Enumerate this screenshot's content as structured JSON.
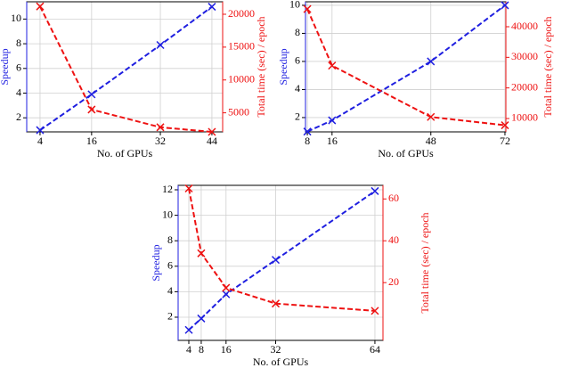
{
  "chart_data": [
    {
      "type": "line",
      "x": [
        4,
        16,
        32,
        44
      ],
      "xlabel": "No. of GPUs",
      "ylabel": "Speedup",
      "y2label": "Total time (sec) / epoch",
      "xlim": [
        0.9,
        46.5
      ],
      "xticks": [
        4,
        16,
        32,
        44
      ],
      "ylim": [
        0.86,
        11.4
      ],
      "yticks": [
        2,
        4,
        6,
        8,
        10
      ],
      "y2lim": [
        2100,
        21900
      ],
      "y2ticks": [
        5000,
        10000,
        15000,
        20000
      ],
      "grid": true,
      "series": [
        {
          "name": "Speedup",
          "color": "#1f1fe0",
          "values": [
            1,
            3.9,
            7.9,
            11
          ]
        },
        {
          "name": "Total time (sec) / epoch",
          "color": "#ee1111",
          "axis": "y2",
          "values": [
            21200,
            5500,
            2800,
            2100
          ]
        }
      ]
    },
    {
      "type": "line",
      "x": [
        8,
        16,
        48,
        72
      ],
      "xlabel": "No. of GPUs",
      "ylabel": "Speedup",
      "y2label": "Total time (sec) / epoch",
      "xlim": [
        7.4,
        72.3
      ],
      "xticks": [
        8,
        16,
        48,
        72
      ],
      "ylim": [
        0.98,
        10.25
      ],
      "yticks": [
        2,
        4,
        6,
        8,
        10
      ],
      "y2lim": [
        5630,
        48160
      ],
      "y2ticks": [
        10000,
        20000,
        30000,
        40000
      ],
      "grid": true,
      "series": [
        {
          "name": "Speedup",
          "color": "#1f1fe0",
          "values": [
            1,
            1.8,
            6,
            10
          ]
        },
        {
          "name": "Total time (sec) / epoch",
          "color": "#ee1111",
          "axis": "y2",
          "values": [
            45800,
            27300,
            10500,
            7800
          ]
        }
      ]
    },
    {
      "type": "line",
      "x": [
        4,
        8,
        16,
        32,
        64
      ],
      "xlabel": "No. of GPUs",
      "ylabel": "Speedup",
      "y2label": "Total time (sec) / epoch",
      "xlim": [
        0.55,
        66.6
      ],
      "xticks": [
        4,
        8,
        16,
        32,
        64
      ],
      "ylim": [
        0.18,
        12.35
      ],
      "yticks": [
        2,
        4,
        6,
        8,
        10,
        12
      ],
      "y2lim": [
        -7.6,
        66.5
      ],
      "y2ticks": [
        20,
        40,
        60
      ],
      "grid": true,
      "series": [
        {
          "name": "Speedup",
          "color": "#1f1fe0",
          "values": [
            1,
            1.9,
            3.8,
            6.5,
            11.9
          ]
        },
        {
          "name": "Total time (sec) / epoch",
          "color": "#ee1111",
          "axis": "y2",
          "values": [
            65,
            34,
            17.5,
            10,
            6.5
          ]
        }
      ]
    }
  ]
}
